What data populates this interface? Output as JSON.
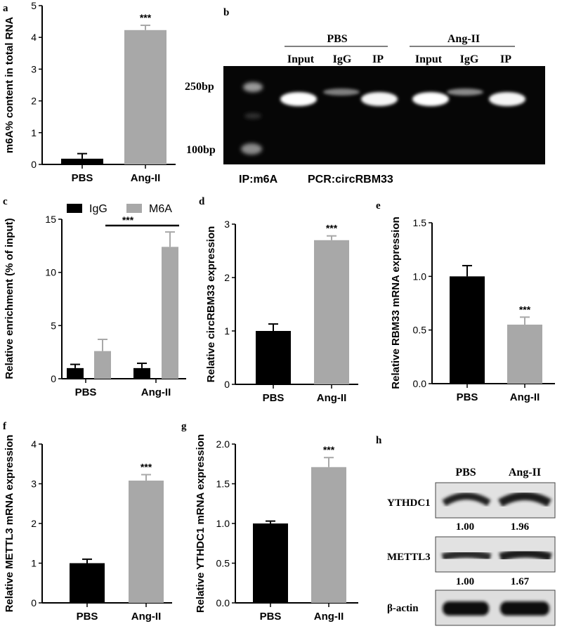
{
  "colors": {
    "pbs": "#000000",
    "angii": "#a8a8a8",
    "igg": "#000000",
    "m6a": "#a8a8a8"
  },
  "panel_letters": {
    "a": "a",
    "b": "b",
    "c": "c",
    "d": "d",
    "e": "e",
    "f": "f",
    "g": "g",
    "h": "h"
  },
  "gel": {
    "group_labels": [
      "PBS",
      "Ang-II"
    ],
    "lane_labels": [
      "Input",
      "IgG",
      "IP",
      "Input",
      "IgG",
      "IP"
    ],
    "marker_labels": [
      "250bp",
      "100bp"
    ],
    "footer_left": "IP:m6A",
    "footer_right": "PCR:circRBM33",
    "band_intensity": [
      1.0,
      0.35,
      0.95,
      1.0,
      0.4,
      0.95
    ]
  },
  "western": {
    "column_labels": [
      "PBS",
      "Ang-II"
    ],
    "rows": [
      {
        "label": "YTHDC1",
        "values": [
          "1.00",
          "1.96"
        ]
      },
      {
        "label": "METTL3",
        "values": [
          "1.00",
          "1.67"
        ]
      },
      {
        "label": "β-actin",
        "values": []
      }
    ]
  },
  "chart_data": [
    {
      "panel": "a",
      "type": "bar",
      "categories": [
        "PBS",
        "Ang-II"
      ],
      "values": [
        0.18,
        4.23
      ],
      "errors": [
        0.16,
        0.15
      ],
      "ylabel": "m6A% content in total RNA",
      "ylim": [
        0,
        5
      ],
      "yticks": [
        "0",
        "1",
        "2",
        "3",
        "4",
        "5"
      ],
      "annotations": [
        "",
        "***"
      ]
    },
    {
      "panel": "c",
      "type": "bar",
      "categories": [
        "PBS",
        "Ang-II"
      ],
      "series": [
        {
          "name": "IgG",
          "values": [
            1.0,
            1.0
          ],
          "errors": [
            0.35,
            0.45
          ]
        },
        {
          "name": "M6A",
          "values": [
            2.6,
            12.4
          ],
          "errors": [
            1.1,
            1.4
          ]
        }
      ],
      "ylabel": "Relative enrichment (% of input)",
      "ylim": [
        0,
        15
      ],
      "yticks": [
        "0",
        "5",
        "10",
        "15"
      ],
      "bracket_label": "***",
      "legend": "top"
    },
    {
      "panel": "d",
      "type": "bar",
      "categories": [
        "PBS",
        "Ang-II"
      ],
      "values": [
        1.0,
        2.7
      ],
      "errors": [
        0.13,
        0.08
      ],
      "ylabel": "Relative circRBM33 expression",
      "ylim": [
        0,
        3
      ],
      "yticks": [
        "0",
        "1",
        "2",
        "3"
      ],
      "annotations": [
        "",
        "***"
      ]
    },
    {
      "panel": "e",
      "type": "bar",
      "categories": [
        "PBS",
        "Ang-II"
      ],
      "values": [
        1.0,
        0.55
      ],
      "errors": [
        0.1,
        0.07
      ],
      "ylabel": "Relative RBM33 mRNA expression",
      "ylim": [
        0,
        1.5
      ],
      "yticks": [
        "0.0",
        "0.5",
        "1.0",
        "1.5"
      ],
      "annotations": [
        "",
        "***"
      ]
    },
    {
      "panel": "f",
      "type": "bar",
      "categories": [
        "PBS",
        "Ang-II"
      ],
      "values": [
        1.0,
        3.08
      ],
      "errors": [
        0.1,
        0.15
      ],
      "ylabel": "Relative METTL3 mRNA expression",
      "ylim": [
        0,
        4
      ],
      "yticks": [
        "0",
        "1",
        "2",
        "3",
        "4"
      ],
      "annotations": [
        "",
        "***"
      ]
    },
    {
      "panel": "g",
      "type": "bar",
      "categories": [
        "PBS",
        "Ang-II"
      ],
      "values": [
        1.0,
        1.71
      ],
      "errors": [
        0.03,
        0.12
      ],
      "ylabel": "Relative YTHDC1 mRNA expression",
      "ylim": [
        0,
        2
      ],
      "yticks": [
        "0.0",
        "0.5",
        "1.0",
        "1.5",
        "2.0"
      ],
      "annotations": [
        "",
        "***"
      ]
    }
  ]
}
